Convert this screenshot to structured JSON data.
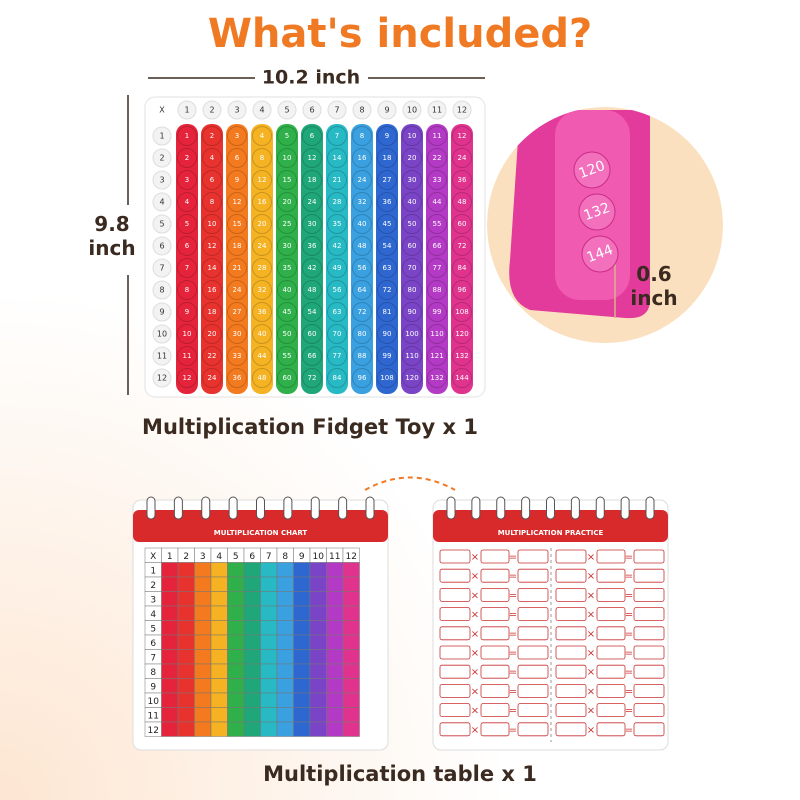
{
  "title": "What's included?",
  "fidget_toy": {
    "width_label": "10.2 inch",
    "height_label": "9.8 inch",
    "caption": "Multiplication Fidget Toy x 1",
    "corner": "X",
    "col_headers": [
      1,
      2,
      3,
      4,
      5,
      6,
      7,
      8,
      9,
      10,
      11,
      12
    ],
    "row_headers": [
      1,
      2,
      3,
      4,
      5,
      6,
      7,
      8,
      9,
      10,
      11,
      12
    ],
    "products": [
      [
        1,
        2,
        3,
        4,
        5,
        6,
        7,
        8,
        9,
        10,
        11,
        12
      ],
      [
        2,
        4,
        6,
        8,
        10,
        12,
        14,
        16,
        18,
        20,
        22,
        24
      ],
      [
        3,
        6,
        9,
        12,
        15,
        18,
        21,
        24,
        27,
        30,
        33,
        36
      ],
      [
        4,
        8,
        12,
        16,
        20,
        24,
        28,
        32,
        36,
        40,
        44,
        48
      ],
      [
        5,
        10,
        15,
        20,
        25,
        30,
        35,
        40,
        45,
        50,
        55,
        60
      ],
      [
        6,
        12,
        18,
        24,
        30,
        36,
        42,
        48,
        54,
        60,
        66,
        72
      ],
      [
        7,
        14,
        21,
        28,
        35,
        42,
        49,
        56,
        63,
        70,
        77,
        84
      ],
      [
        8,
        16,
        24,
        32,
        40,
        48,
        56,
        64,
        72,
        80,
        88,
        96
      ],
      [
        9,
        18,
        27,
        36,
        45,
        54,
        63,
        72,
        81,
        90,
        99,
        108
      ],
      [
        10,
        20,
        30,
        40,
        50,
        60,
        70,
        80,
        90,
        100,
        110,
        120
      ],
      [
        11,
        22,
        33,
        44,
        55,
        66,
        77,
        88,
        99,
        110,
        121,
        132
      ],
      [
        12,
        24,
        36,
        48,
        60,
        72,
        84,
        96,
        108,
        120,
        132,
        144
      ]
    ]
  },
  "zoom": {
    "numbers": [
      120,
      132,
      144
    ],
    "depth_label": "0.6 inch"
  },
  "chart_notebook": {
    "title": "MULTIPLICATION CHART",
    "corner": "X",
    "col_headers": [
      1,
      2,
      3,
      4,
      5,
      6,
      7,
      8,
      9,
      10,
      11,
      12
    ],
    "row_headers": [
      1,
      2,
      3,
      4,
      5,
      6,
      7,
      8,
      9,
      10,
      11,
      12
    ]
  },
  "practice_notebook": {
    "title": "MULTIPLICATION PRACTICE",
    "times": "×",
    "equals": "="
  },
  "caption": "Multiplication table x 1"
}
